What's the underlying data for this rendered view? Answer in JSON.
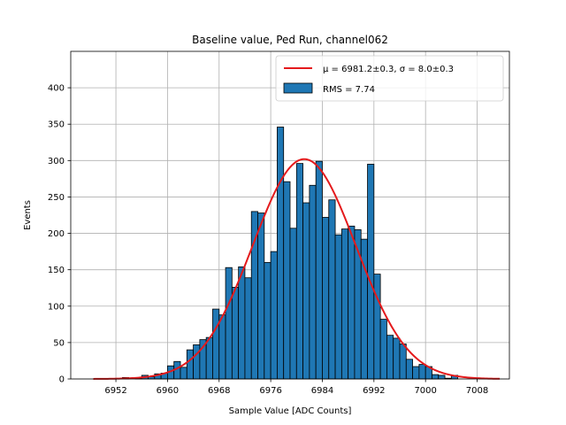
{
  "chart_data": {
    "type": "bar",
    "title": "Baseline value, Ped Run, channel062",
    "xlabel": "Sample Value [ADC Counts]",
    "ylabel": "Events",
    "xlim": [
      6945,
      7013
    ],
    "ylim": [
      0,
      450
    ],
    "grid": true,
    "legend_position": "top-right",
    "x_ticks": [
      6952,
      6960,
      6968,
      6976,
      6984,
      6992,
      7000,
      7008
    ],
    "y_ticks": [
      0,
      50,
      100,
      150,
      200,
      250,
      300,
      350,
      400
    ],
    "bin_width": 1,
    "series": [
      {
        "name": "RMS = 7.74",
        "kind": "histogram",
        "color": "#1f77b4",
        "bins": [
          6950,
          6951,
          6952,
          6953,
          6954,
          6955,
          6956,
          6957,
          6958,
          6959,
          6960,
          6961,
          6962,
          6963,
          6964,
          6965,
          6966,
          6967,
          6968,
          6969,
          6970,
          6971,
          6972,
          6973,
          6974,
          6975,
          6976,
          6977,
          6978,
          6979,
          6980,
          6981,
          6982,
          6983,
          6984,
          6985,
          6986,
          6987,
          6988,
          6989,
          6990,
          6991,
          6992,
          6993,
          6994,
          6995,
          6996,
          6997,
          6998,
          6999,
          7000,
          7001,
          7002,
          7003,
          7004,
          7005,
          7006,
          7007,
          7008
        ],
        "values": [
          0,
          0,
          0,
          2,
          0,
          1,
          5,
          3,
          7,
          8,
          18,
          24,
          16,
          40,
          47,
          54,
          57,
          96,
          88,
          153,
          126,
          154,
          139,
          230,
          228,
          160,
          175,
          346,
          271,
          207,
          296,
          242,
          266,
          299,
          222,
          246,
          198,
          206,
          210,
          205,
          192,
          295,
          144,
          82,
          60,
          56,
          48,
          27,
          17,
          20,
          17,
          6,
          5,
          1,
          5,
          0,
          0,
          0,
          0
        ]
      },
      {
        "name": "μ = 6981.2±0.3, σ = 8.0±0.3",
        "kind": "gaussian-fit",
        "color": "#e41a1c",
        "mu": 6981.2,
        "mu_err": 0.3,
        "sigma": 8.0,
        "sigma_err": 0.3,
        "amplitude": 302,
        "x_range": [
          6948.5,
          7011.5
        ]
      }
    ],
    "legend": [
      {
        "label_prefix": "μ = 6981.2±0.3, ",
        "label_sigma": "σ = 8.0±0.3",
        "color": "#e41a1c",
        "marker": "line"
      },
      {
        "label": "RMS = 7.74",
        "color": "#1f77b4",
        "marker": "patch"
      }
    ]
  }
}
